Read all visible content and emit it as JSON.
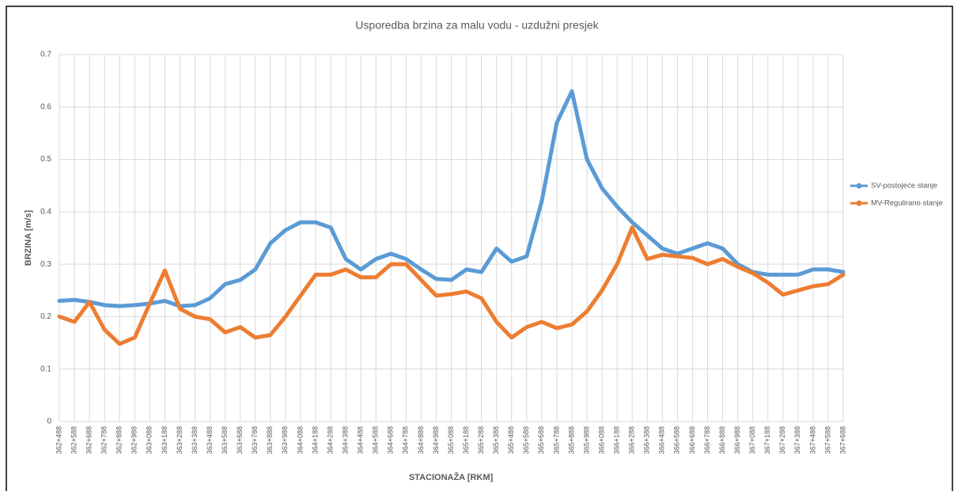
{
  "chart_data": {
    "type": "line",
    "title": "Usporedba brzina za malu vodu - uzdužni presjek",
    "y_label": "BRZINA [m/s]",
    "x_label": "STACIONAŽA [RKM]",
    "categories": [
      "362+488",
      "362+588",
      "362+688",
      "362+788",
      "362+888",
      "362+988",
      "363+088",
      "363+188",
      "363+288",
      "363+388",
      "363+488",
      "363+588",
      "363+688",
      "363+788",
      "363+888",
      "363+988",
      "364+088",
      "364+188",
      "364+288",
      "364+388",
      "364+488",
      "364+588",
      "364+688",
      "364+788",
      "364+888",
      "364+988",
      "365+088",
      "365+188",
      "365+288",
      "365+388",
      "365+488",
      "365+588",
      "365+688",
      "365+788",
      "365+888",
      "365+988",
      "366+088",
      "366+188",
      "366+288",
      "366+388",
      "366+488",
      "366+588",
      "366+688",
      "366+788",
      "366+888",
      "366+988",
      "367+088",
      "367+188",
      "367+288",
      "367+388",
      "367+488",
      "367+588",
      "367+688"
    ],
    "series": [
      {
        "name": "SV-postojeće stanje",
        "color": "#5b9bd5",
        "values": [
          0.23,
          0.232,
          0.228,
          0.222,
          0.22,
          0.222,
          0.225,
          0.23,
          0.22,
          0.222,
          0.235,
          0.262,
          0.27,
          0.29,
          0.34,
          0.365,
          0.38,
          0.38,
          0.37,
          0.31,
          0.29,
          0.31,
          0.32,
          0.31,
          0.29,
          0.272,
          0.27,
          0.29,
          0.285,
          0.33,
          0.305,
          0.315,
          0.42,
          0.57,
          0.63,
          0.5,
          0.445,
          0.41,
          0.38,
          0.355,
          0.33,
          0.32,
          0.33,
          0.34,
          0.33,
          0.3,
          0.285,
          0.28,
          0.28,
          0.28,
          0.29,
          0.29,
          0.285
        ]
      },
      {
        "name": "MV-Regulirano stanje",
        "color": "#ed7d31",
        "values": [
          0.2,
          0.19,
          0.228,
          0.175,
          0.148,
          0.16,
          0.225,
          0.288,
          0.215,
          0.2,
          0.195,
          0.17,
          0.18,
          0.16,
          0.165,
          0.2,
          0.24,
          0.28,
          0.28,
          0.29,
          0.275,
          0.275,
          0.3,
          0.3,
          0.27,
          0.24,
          0.243,
          0.248,
          0.235,
          0.19,
          0.16,
          0.18,
          0.19,
          0.178,
          0.185,
          0.21,
          0.25,
          0.3,
          0.37,
          0.31,
          0.318,
          0.315,
          0.312,
          0.3,
          0.31,
          0.295,
          0.283,
          0.265,
          0.242,
          0.25,
          0.258,
          0.262,
          0.28
        ]
      }
    ],
    "ylim": [
      0,
      0.7
    ],
    "yticks": [
      0,
      0.1,
      0.2,
      0.3,
      0.4,
      0.5,
      0.6,
      0.7
    ],
    "grid": true,
    "legend": "right"
  }
}
